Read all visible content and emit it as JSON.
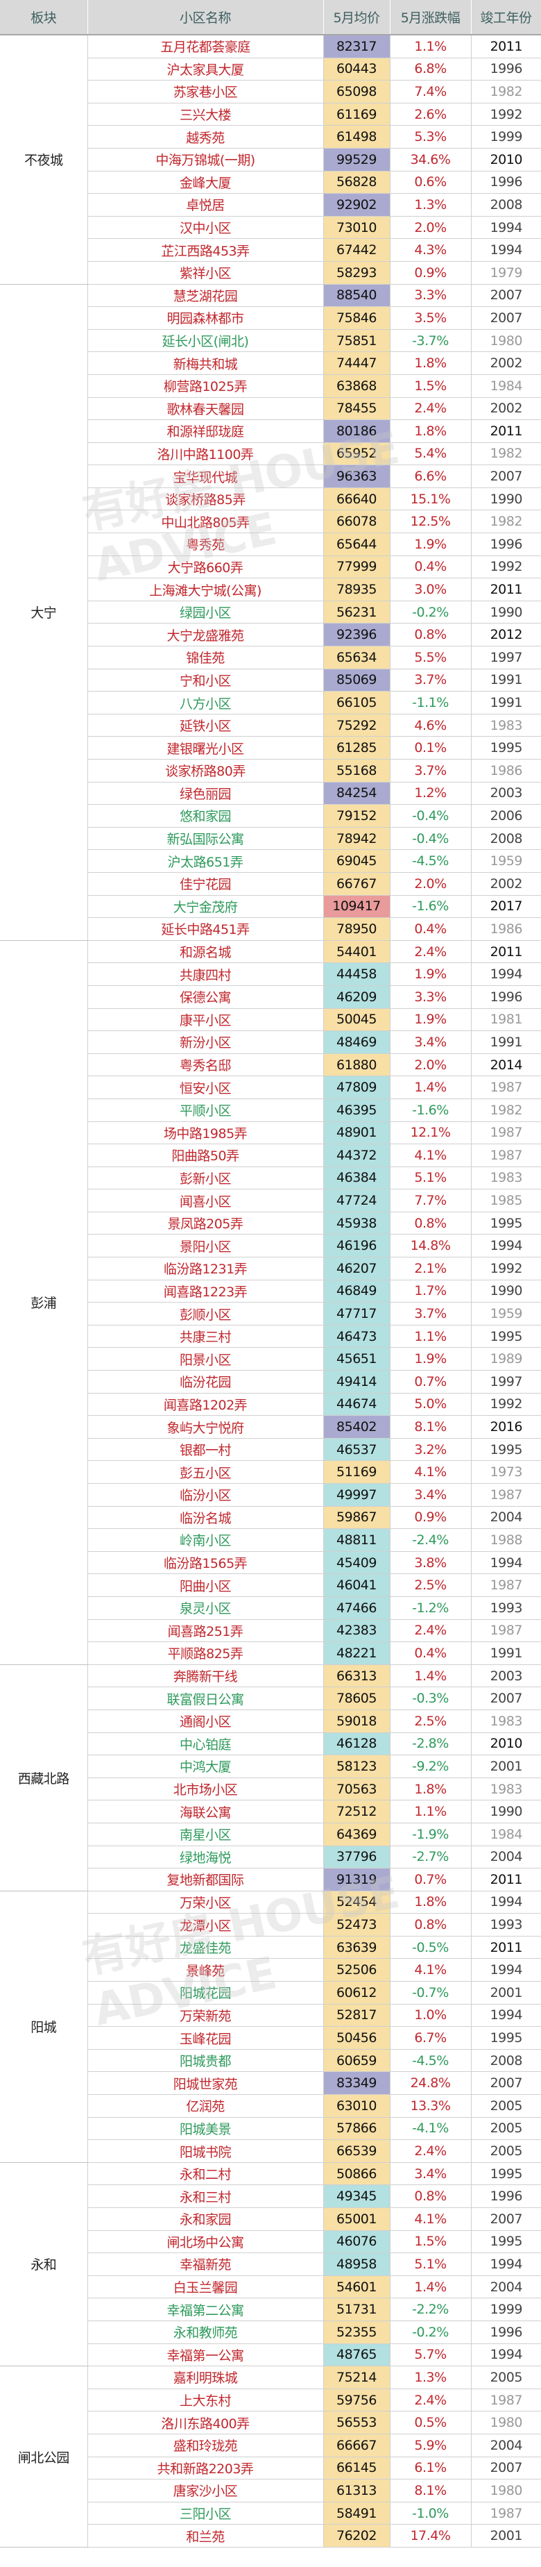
{
  "header": {
    "region": "板块",
    "name": "小区名称",
    "price": "5月均价",
    "change": "5月涨跌幅",
    "year": "竣工年份"
  },
  "watermark": "有好房 HOUSE ADVICE",
  "colors": {
    "up": "#c1272d",
    "down": "#2e9a5c",
    "price_yellow": "#f7dfa5",
    "price_purple": "#aaaad0",
    "price_teal": "#b3e0e0",
    "price_red": "#e99a9a"
  },
  "regions": [
    {
      "name": "不夜城",
      "rows": [
        [
          "五月花都荟豪庭",
          "82317",
          "1.1%",
          "2011"
        ],
        [
          "沪太家具大厦",
          "60443",
          "6.8%",
          "1996"
        ],
        [
          "苏家巷小区",
          "65098",
          "7.4%",
          "1982"
        ],
        [
          "三兴大楼",
          "61169",
          "2.6%",
          "1992"
        ],
        [
          "越秀苑",
          "61498",
          "5.3%",
          "1999"
        ],
        [
          "中海万锦城(一期)",
          "99529",
          "34.6%",
          "2010"
        ],
        [
          "金峰大厦",
          "56828",
          "0.6%",
          "1996"
        ],
        [
          "卓悦居",
          "92902",
          "1.3%",
          "2008"
        ],
        [
          "汉中小区",
          "73010",
          "2.0%",
          "1994"
        ],
        [
          "芷江西路453弄",
          "67442",
          "4.3%",
          "1994"
        ],
        [
          "紫祥小区",
          "58293",
          "0.9%",
          "1979"
        ]
      ]
    },
    {
      "name": "大宁",
      "rows": [
        [
          "慧芝湖花园",
          "88540",
          "3.3%",
          "2007"
        ],
        [
          "明园森林都市",
          "75846",
          "3.5%",
          "2007"
        ],
        [
          "延长小区(闸北)",
          "75851",
          "-3.7%",
          "1980"
        ],
        [
          "新梅共和城",
          "74447",
          "1.8%",
          "2002"
        ],
        [
          "柳营路1025弄",
          "63868",
          "1.5%",
          "1984"
        ],
        [
          "歌林春天馨园",
          "78455",
          "2.4%",
          "2002"
        ],
        [
          "和源祥邸珑庭",
          "80186",
          "1.8%",
          "2011"
        ],
        [
          "洛川中路1100弄",
          "65952",
          "5.4%",
          "1982"
        ],
        [
          "宝华现代城",
          "96363",
          "6.6%",
          "2007"
        ],
        [
          "谈家桥路85弄",
          "66640",
          "15.1%",
          "1990"
        ],
        [
          "中山北路805弄",
          "66078",
          "12.5%",
          "1982"
        ],
        [
          "粤秀苑",
          "65644",
          "1.9%",
          "1996"
        ],
        [
          "大宁路660弄",
          "77999",
          "0.4%",
          "1992"
        ],
        [
          "上海滩大宁城(公寓)",
          "78935",
          "3.0%",
          "2011"
        ],
        [
          "绿园小区",
          "56231",
          "-0.2%",
          "1990"
        ],
        [
          "大宁龙盛雅苑",
          "92396",
          "0.8%",
          "2012"
        ],
        [
          "锦佳苑",
          "65634",
          "5.5%",
          "1997"
        ],
        [
          "宁和小区",
          "85069",
          "3.7%",
          "1991"
        ],
        [
          "八方小区",
          "66105",
          "-1.1%",
          "1991"
        ],
        [
          "延铁小区",
          "75292",
          "4.6%",
          "1983"
        ],
        [
          "建银曙光小区",
          "61285",
          "0.1%",
          "1995"
        ],
        [
          "谈家桥路80弄",
          "55168",
          "3.7%",
          "1986"
        ],
        [
          "绿色丽园",
          "84254",
          "1.2%",
          "2003"
        ],
        [
          "悠和家园",
          "79152",
          "-0.4%",
          "2006"
        ],
        [
          "新弘国际公寓",
          "78942",
          "-0.4%",
          "2008"
        ],
        [
          "沪太路651弄",
          "69045",
          "-4.5%",
          "1959"
        ],
        [
          "佳宁花园",
          "66767",
          "2.0%",
          "2002"
        ],
        [
          "大宁金茂府",
          "109417",
          "-1.6%",
          "2017"
        ],
        [
          "延长中路451弄",
          "78950",
          "0.4%",
          "1986"
        ]
      ]
    },
    {
      "name": "彭浦",
      "rows": [
        [
          "和源名城",
          "54401",
          "2.4%",
          "2011"
        ],
        [
          "共康四村",
          "44458",
          "1.9%",
          "1994"
        ],
        [
          "保德公寓",
          "46209",
          "3.3%",
          "1996"
        ],
        [
          "康平小区",
          "50045",
          "1.9%",
          "1981"
        ],
        [
          "新汾小区",
          "48469",
          "3.4%",
          "1991"
        ],
        [
          "粤秀名邸",
          "61880",
          "2.0%",
          "2014"
        ],
        [
          "恒安小区",
          "47809",
          "1.4%",
          "1987"
        ],
        [
          "平顺小区",
          "46395",
          "-1.6%",
          "1982"
        ],
        [
          "场中路1985弄",
          "48901",
          "12.1%",
          "1987"
        ],
        [
          "阳曲路50弄",
          "44372",
          "4.1%",
          "1987"
        ],
        [
          "彭新小区",
          "46384",
          "5.1%",
          "1983"
        ],
        [
          "闻喜小区",
          "47724",
          "7.7%",
          "1985"
        ],
        [
          "景凤路205弄",
          "45938",
          "0.8%",
          "1995"
        ],
        [
          "景阳小区",
          "46196",
          "14.8%",
          "1994"
        ],
        [
          "临汾路1231弄",
          "46207",
          "2.1%",
          "1992"
        ],
        [
          "闻喜路1223弄",
          "46849",
          "1.7%",
          "1990"
        ],
        [
          "彭顺小区",
          "47717",
          "3.7%",
          "1959"
        ],
        [
          "共康三村",
          "46473",
          "1.1%",
          "1995"
        ],
        [
          "阳景小区",
          "45651",
          "1.9%",
          "1989"
        ],
        [
          "临汾花园",
          "49414",
          "0.7%",
          "1997"
        ],
        [
          "闻喜路1202弄",
          "44674",
          "5.0%",
          "1992"
        ],
        [
          "象屿大宁悦府",
          "85402",
          "8.1%",
          "2016"
        ],
        [
          "银都一村",
          "46537",
          "3.2%",
          "1995"
        ],
        [
          "彭五小区",
          "51169",
          "4.1%",
          "1973"
        ],
        [
          "临汾小区",
          "49997",
          "3.4%",
          "1987"
        ],
        [
          "临汾名城",
          "59867",
          "0.9%",
          "2004"
        ],
        [
          "岭南小区",
          "48811",
          "-2.4%",
          "1988"
        ],
        [
          "临汾路1565弄",
          "45409",
          "3.8%",
          "1994"
        ],
        [
          "阳曲小区",
          "46041",
          "2.5%",
          "1987"
        ],
        [
          "泉灵小区",
          "47466",
          "-1.2%",
          "1993"
        ],
        [
          "闻喜路251弄",
          "42383",
          "2.4%",
          "1987"
        ],
        [
          "平顺路825弄",
          "48221",
          "0.4%",
          "1991"
        ]
      ]
    },
    {
      "name": "西藏北路",
      "rows": [
        [
          "奔腾新干线",
          "66313",
          "1.4%",
          "2003"
        ],
        [
          "联富假日公寓",
          "78605",
          "-0.3%",
          "2007"
        ],
        [
          "通阁小区",
          "59018",
          "2.5%",
          "1983"
        ],
        [
          "中心铂庭",
          "46128",
          "-2.8%",
          "2010"
        ],
        [
          "中鸿大厦",
          "58123",
          "-9.2%",
          "2001"
        ],
        [
          "北市场小区",
          "70563",
          "1.8%",
          "1983"
        ],
        [
          "海联公寓",
          "72512",
          "1.1%",
          "1990"
        ],
        [
          "南星小区",
          "64369",
          "-1.9%",
          "1984"
        ],
        [
          "绿地海悦",
          "37796",
          "-2.7%",
          "2004"
        ],
        [
          "复地新都国际",
          "91319",
          "0.7%",
          "2011"
        ]
      ]
    },
    {
      "name": "阳城",
      "rows": [
        [
          "万荣小区",
          "52454",
          "1.8%",
          "1994"
        ],
        [
          "龙潭小区",
          "52473",
          "0.8%",
          "1993"
        ],
        [
          "龙盛佳苑",
          "63639",
          "-0.5%",
          "2011"
        ],
        [
          "景峰苑",
          "52506",
          "4.1%",
          "1994"
        ],
        [
          "阳城花园",
          "60612",
          "-0.7%",
          "2001"
        ],
        [
          "万荣新苑",
          "52817",
          "1.0%",
          "1994"
        ],
        [
          "玉峰花园",
          "50456",
          "6.7%",
          "1995"
        ],
        [
          "阳城贵都",
          "60659",
          "-4.5%",
          "2008"
        ],
        [
          "阳城世家苑",
          "83349",
          "24.8%",
          "2007"
        ],
        [
          "亿润苑",
          "63010",
          "13.3%",
          "2005"
        ],
        [
          "阳城美景",
          "57866",
          "-4.1%",
          "2005"
        ],
        [
          "阳城书院",
          "66539",
          "2.4%",
          "2005"
        ]
      ]
    },
    {
      "name": "永和",
      "rows": [
        [
          "永和二村",
          "50866",
          "3.4%",
          "1995"
        ],
        [
          "永和三村",
          "49345",
          "0.8%",
          "1996"
        ],
        [
          "永和家园",
          "65001",
          "4.1%",
          "2007"
        ],
        [
          "闸北场中公寓",
          "46076",
          "1.5%",
          "1995"
        ],
        [
          "幸福新苑",
          "48958",
          "5.1%",
          "1994"
        ],
        [
          "白玉兰馨园",
          "54601",
          "1.4%",
          "2004"
        ],
        [
          "幸福第二公寓",
          "51731",
          "-2.2%",
          "1999"
        ],
        [
          "永和教师苑",
          "52355",
          "-0.2%",
          "1996"
        ],
        [
          "幸福第一公寓",
          "48765",
          "5.7%",
          "1994"
        ]
      ]
    },
    {
      "name": "闸北公园",
      "rows": [
        [
          "嘉利明珠城",
          "75214",
          "1.3%",
          "2005"
        ],
        [
          "上大东村",
          "59756",
          "2.4%",
          "1987"
        ],
        [
          "洛川东路400弄",
          "56553",
          "0.5%",
          "1980"
        ],
        [
          "盛和玲珑苑",
          "66667",
          "5.9%",
          "2004"
        ],
        [
          "共和新路2203弄",
          "66145",
          "6.1%",
          "2007"
        ],
        [
          "唐家沙小区",
          "61313",
          "8.1%",
          "1980"
        ],
        [
          "三阳小区",
          "58491",
          "-1.0%",
          "1987"
        ],
        [
          "和兰苑",
          "76202",
          "17.4%",
          "2001"
        ]
      ]
    }
  ]
}
